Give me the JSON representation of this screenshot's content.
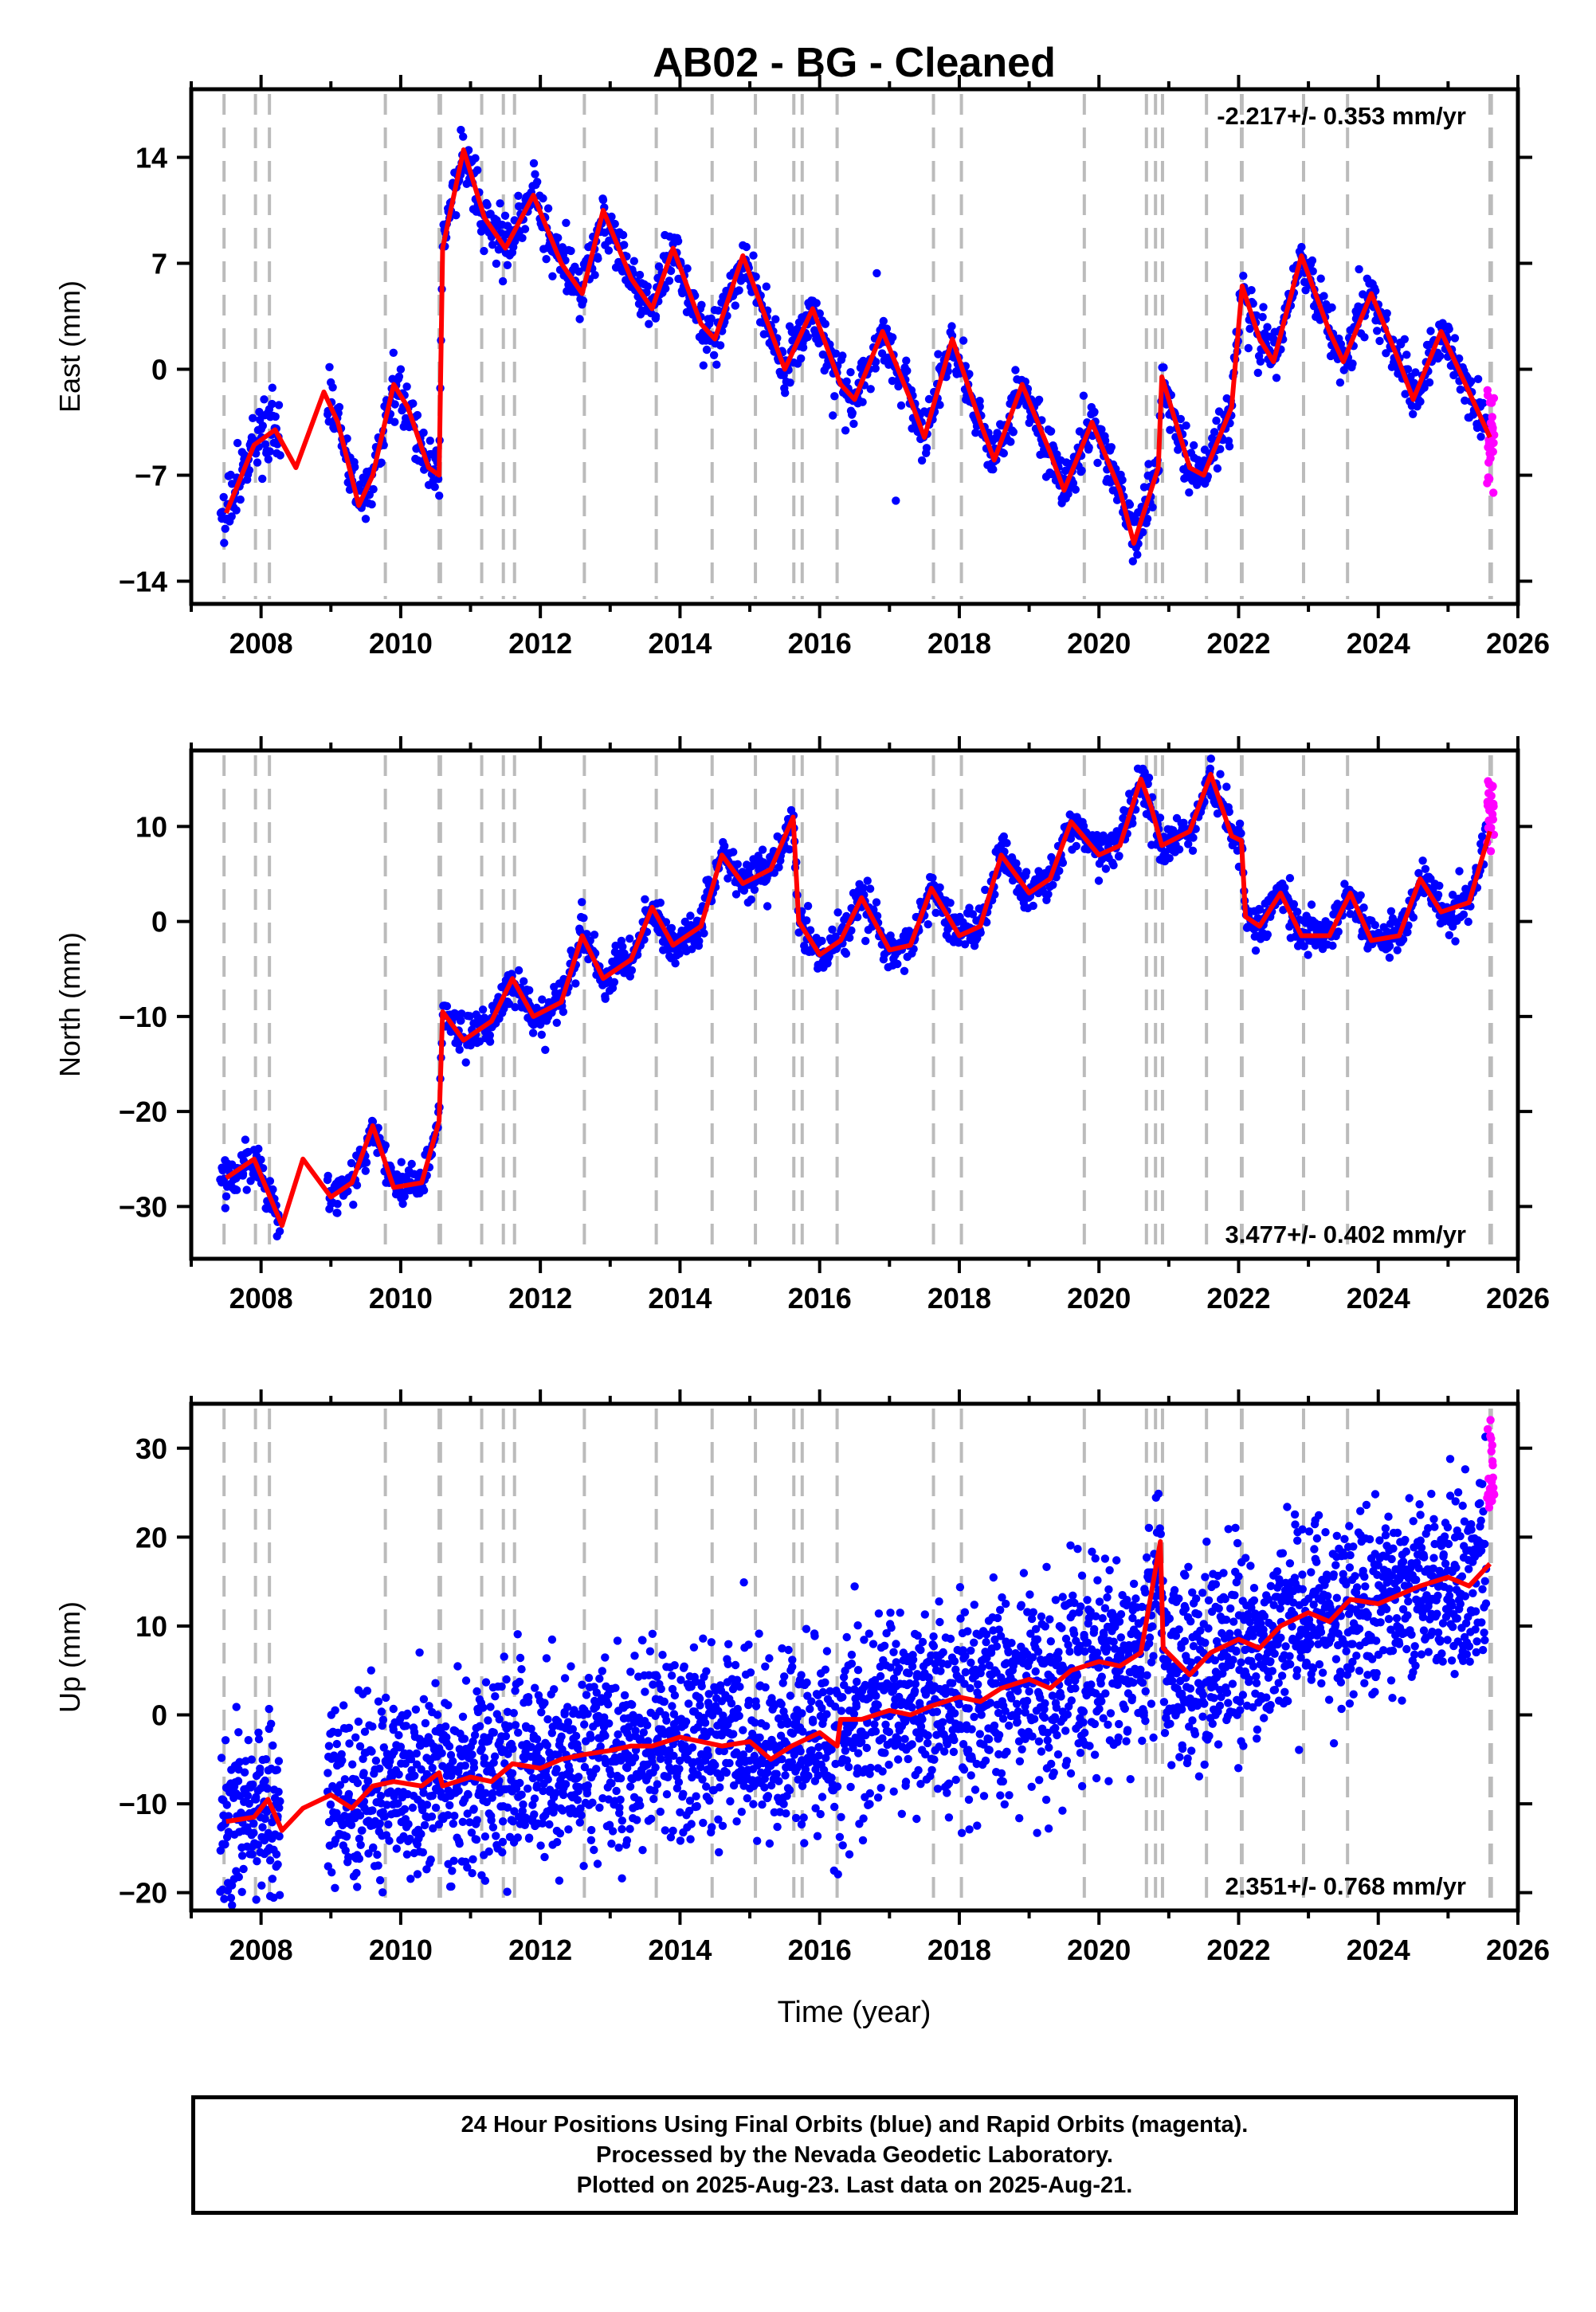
{
  "chart_data": {
    "title": "AB02  - BG - Cleaned",
    "xlabel": "Time (year)",
    "xlim": [
      2007.0,
      2026.0
    ],
    "x_ticks": [
      2008,
      2010,
      2012,
      2014,
      2016,
      2018,
      2020,
      2022,
      2024,
      2026
    ],
    "colors": {
      "final": "#0000ff",
      "rapid": "#ff00ff",
      "model": "#ff0000",
      "event": "#bbbbbb"
    },
    "event_lines": [
      2007.47,
      2007.92,
      2008.12,
      2009.78,
      2010.55,
      2010.57,
      2011.16,
      2011.47,
      2011.63,
      2012.63,
      2013.66,
      2014.46,
      2015.08,
      2015.63,
      2015.75,
      2016.25,
      2017.63,
      2018.03,
      2019.79,
      2020.68,
      2020.81,
      2020.91,
      2021.54,
      2022.04,
      2022.05,
      2022.93,
      2023.56,
      2025.6,
      2025.62
    ],
    "panels": [
      {
        "type": "scatter",
        "ylabel": "East (mm)",
        "ylim": [
          -15.5,
          18.5
        ],
        "y_ticks": [
          -14,
          -7,
          0,
          7,
          14
        ],
        "rate_label": "-2.217+/- 0.353 mm/yr",
        "rate_position": "top-right",
        "series": [
          {
            "name": "",
            "x": [
              2007.5,
              2007.9,
              2008.2,
              2008.5,
              2008.9,
              2009.1,
              2009.4,
              2009.6,
              2009.9,
              2010.1,
              2010.4,
              2010.55,
              2010.6,
              2010.9,
              2011.2,
              2011.5,
              2011.9,
              2012.3,
              2012.6,
              2012.9,
              2013.3,
              2013.6,
              2013.9,
              2014.3,
              2014.5,
              2014.9,
              2015.3,
              2015.5,
              2015.9,
              2016.3,
              2016.5,
              2016.9,
              2017.3,
              2017.5,
              2017.9,
              2018.3,
              2018.5,
              2018.9,
              2019.3,
              2019.5,
              2019.9,
              2020.3,
              2020.5,
              2020.85,
              2020.9,
              2021.3,
              2021.5,
              2021.9,
              2022.05,
              2022.3,
              2022.5,
              2022.9,
              2023.3,
              2023.5,
              2023.9,
              2024.3,
              2024.5,
              2024.9,
              2025.3,
              2025.6
            ],
            "y": [
              -9.5,
              -5.0,
              -4.0,
              -6.5,
              -1.5,
              -3.5,
              -9.0,
              -7.0,
              -1.0,
              -2.5,
              -6.5,
              -7.0,
              8.0,
              14.5,
              10.0,
              8.0,
              11.5,
              7.0,
              5.0,
              10.5,
              6.0,
              4.0,
              8.0,
              3.0,
              2.0,
              7.5,
              2.5,
              0.0,
              4.0,
              -1.0,
              -2.0,
              2.5,
              -2.0,
              -4.5,
              2.0,
              -3.5,
              -6.0,
              -1.0,
              -5.5,
              -8.0,
              -3.5,
              -8.0,
              -11.5,
              -6.5,
              -0.5,
              -6.5,
              -7.0,
              -2.5,
              5.5,
              2.0,
              0.5,
              7.5,
              2.5,
              0.5,
              5.0,
              0.5,
              -2.0,
              2.5,
              -1.5,
              -4.5
            ]
          }
        ]
      },
      {
        "type": "scatter",
        "ylabel": "North (mm)",
        "ylim": [
          -35.5,
          18.0
        ],
        "y_ticks": [
          -30,
          -20,
          -10,
          0,
          10
        ],
        "rate_label": "3.477+/- 0.402 mm/yr",
        "rate_position": "bottom-right",
        "series": [
          {
            "name": "",
            "x": [
              2007.5,
              2007.9,
              2008.3,
              2008.6,
              2009.0,
              2009.3,
              2009.6,
              2009.9,
              2010.3,
              2010.55,
              2010.6,
              2010.9,
              2011.3,
              2011.6,
              2011.9,
              2012.3,
              2012.6,
              2012.9,
              2013.3,
              2013.6,
              2013.9,
              2014.3,
              2014.6,
              2014.9,
              2015.3,
              2015.62,
              2015.7,
              2016.0,
              2016.3,
              2016.6,
              2017.0,
              2017.3,
              2017.6,
              2018.0,
              2018.3,
              2018.6,
              2019.0,
              2019.3,
              2019.6,
              2020.0,
              2020.3,
              2020.6,
              2020.75,
              2020.9,
              2021.3,
              2021.6,
              2021.9,
              2022.04,
              2022.1,
              2022.3,
              2022.6,
              2022.9,
              2023.3,
              2023.6,
              2023.9,
              2024.3,
              2024.6,
              2024.9,
              2025.3,
              2025.6
            ],
            "y": [
              -27.0,
              -25.0,
              -32.0,
              -25.0,
              -29.0,
              -27.5,
              -21.5,
              -28.0,
              -27.5,
              -21.0,
              -9.5,
              -12.5,
              -10.5,
              -6.0,
              -10.0,
              -8.5,
              -1.5,
              -6.0,
              -4.0,
              1.5,
              -2.5,
              -0.5,
              7.0,
              4.0,
              5.5,
              11.0,
              0.0,
              -3.5,
              -2.0,
              2.5,
              -3.0,
              -2.5,
              3.5,
              -1.5,
              -0.5,
              7.0,
              3.0,
              4.5,
              10.5,
              7.0,
              8.0,
              15.0,
              12.0,
              8.0,
              9.5,
              15.5,
              9.0,
              8.5,
              0.5,
              -0.5,
              3.0,
              -1.5,
              -1.5,
              3.0,
              -2.0,
              -1.5,
              4.5,
              1.0,
              2.0,
              9.5
            ]
          }
        ]
      },
      {
        "type": "scatter",
        "ylabel": "Up (mm)",
        "ylim": [
          -22.0,
          35.0
        ],
        "y_ticks": [
          -20,
          -10,
          0,
          10,
          20,
          30
        ],
        "rate_label": "2.351+/- 0.768 mm/yr",
        "rate_position": "bottom-right",
        "series": [
          {
            "name": "",
            "x": [
              2007.5,
              2007.9,
              2008.1,
              2008.3,
              2008.6,
              2009.0,
              2009.3,
              2009.6,
              2009.9,
              2010.3,
              2010.55,
              2010.6,
              2011.0,
              2011.3,
              2011.6,
              2012.0,
              2012.3,
              2012.6,
              2013.0,
              2013.3,
              2013.6,
              2014.0,
              2014.3,
              2014.6,
              2015.0,
              2015.3,
              2015.6,
              2016.0,
              2016.25,
              2016.3,
              2016.6,
              2017.0,
              2017.3,
              2017.6,
              2018.0,
              2018.3,
              2018.6,
              2019.0,
              2019.3,
              2019.6,
              2020.0,
              2020.3,
              2020.6,
              2020.88,
              2020.92,
              2021.3,
              2021.6,
              2022.0,
              2022.3,
              2022.6,
              2023.0,
              2023.3,
              2023.6,
              2024.0,
              2024.3,
              2024.6,
              2025.0,
              2025.3,
              2025.6
            ],
            "y": [
              -12.0,
              -11.5,
              -9.5,
              -13.0,
              -10.5,
              -9.0,
              -10.5,
              -8.0,
              -7.5,
              -8.0,
              -6.5,
              -8.0,
              -7.0,
              -7.5,
              -5.5,
              -6.0,
              -5.0,
              -4.5,
              -4.0,
              -3.5,
              -3.5,
              -2.5,
              -3.0,
              -3.5,
              -3.0,
              -5.0,
              -3.5,
              -2.0,
              -3.5,
              -0.5,
              -0.5,
              0.5,
              0.0,
              1.0,
              2.0,
              1.5,
              3.0,
              4.0,
              3.0,
              5.0,
              6.0,
              5.5,
              7.0,
              19.5,
              7.5,
              4.5,
              7.0,
              8.5,
              7.5,
              10.0,
              11.5,
              10.5,
              13.0,
              12.5,
              13.5,
              14.5,
              15.5,
              14.5,
              17.0
            ]
          }
        ]
      }
    ]
  },
  "footer": {
    "line1": "24 Hour Positions Using Final Orbits (blue) and Rapid Orbits (magenta).",
    "line2": "Processed by the Nevada Geodetic Laboratory.",
    "line3": "Plotted on 2025-Aug-23. Last data on 2025-Aug-21."
  }
}
